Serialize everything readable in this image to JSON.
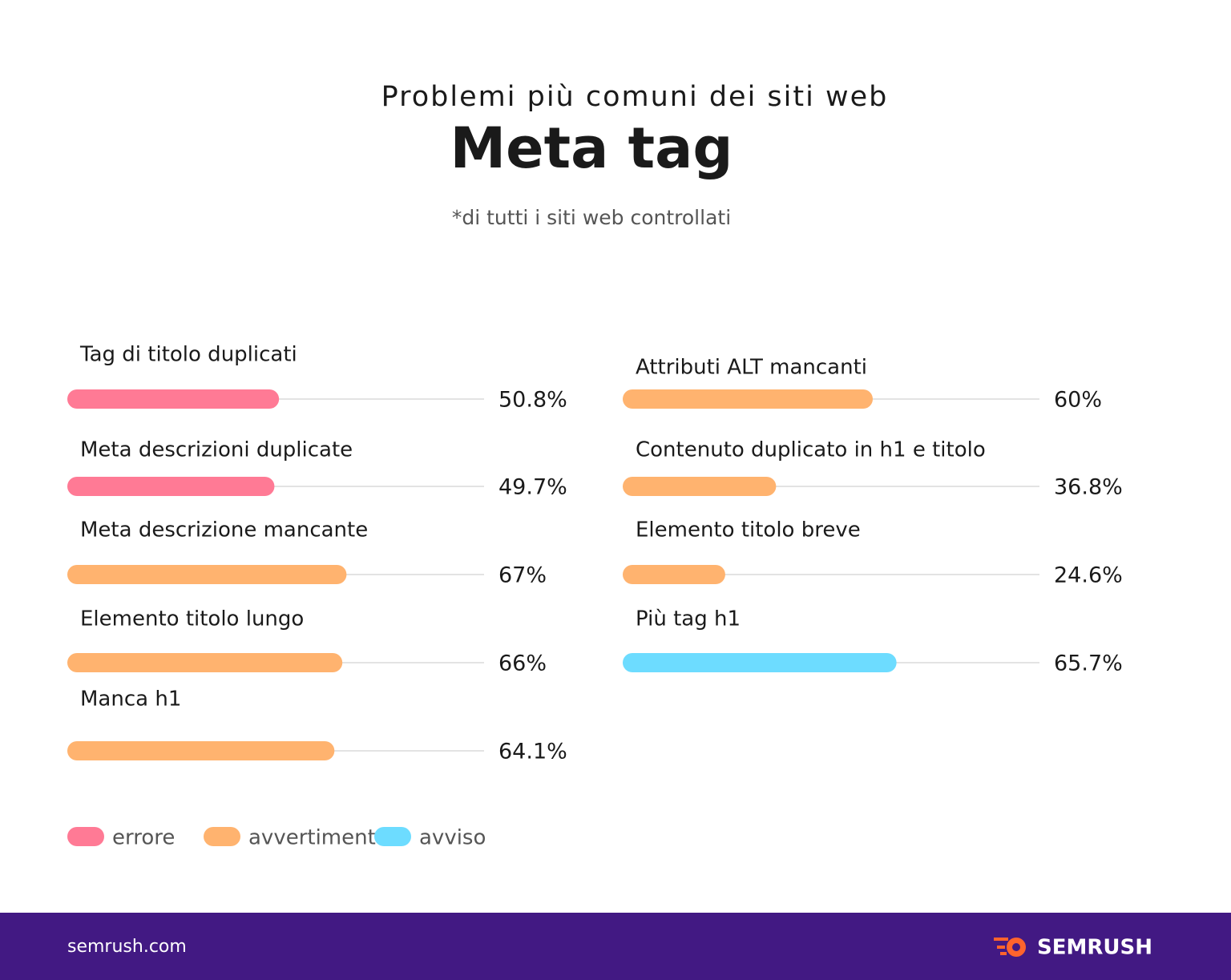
{
  "chart_data": {
    "type": "hbar",
    "supertitle": "Problemi più comuni dei siti web",
    "title": "Meta tag",
    "subtitle": "*di tutti i siti web controllati",
    "categories": [
      "Tag di titolo duplicati",
      "Meta descrizioni duplicate",
      "Meta descrizione mancante",
      "Elemento titolo lungo",
      "Manca h1",
      "Attributi ALT mancanti",
      "Contenuto duplicato in h1 e titolo",
      "Elemento titolo breve",
      "Più tag h1"
    ],
    "series": [
      {
        "name": "errore",
        "color": "#ff7a95",
        "values": [
          50.8,
          49.7,
          null,
          null,
          null,
          null,
          null,
          null,
          null
        ],
        "value_labels": [
          "50.8%",
          "49.7%",
          null,
          null,
          null,
          null,
          null,
          null,
          null
        ]
      },
      {
        "name": "avvertimento",
        "color": "#ffb36f",
        "values": [
          null,
          null,
          67,
          66,
          64.1,
          60,
          36.8,
          24.6,
          null
        ],
        "value_labels": [
          null,
          null,
          "67%",
          "66%",
          "64.1%",
          "60%",
          "36.8%",
          "24.6%",
          null
        ]
      },
      {
        "name": "avviso",
        "color": "#6ddcff",
        "values": [
          null,
          null,
          null,
          null,
          null,
          null,
          null,
          null,
          65.7
        ],
        "value_labels": [
          null,
          null,
          null,
          null,
          null,
          null,
          null,
          null,
          "65.7%"
        ]
      }
    ],
    "xlim": [
      0,
      100
    ]
  },
  "footer": {
    "site": "semrush.com",
    "brand": "SEMRUSH"
  }
}
